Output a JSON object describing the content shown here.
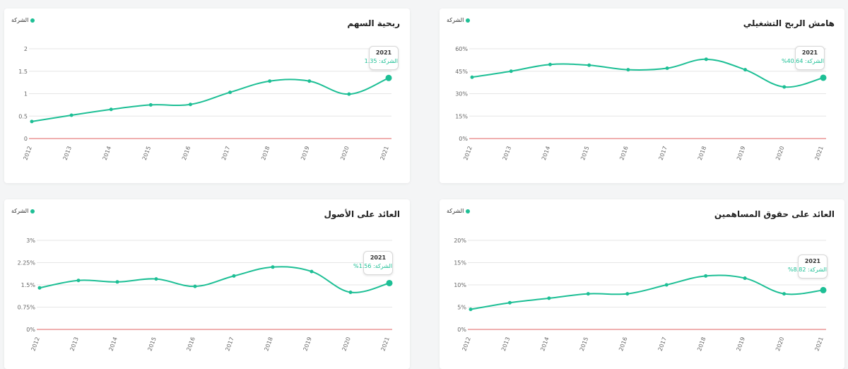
{
  "legend_label": "الشركة",
  "colors": {
    "series": "#1dbf95",
    "baseline": "#e06060",
    "grid": "#e6e6e6"
  },
  "chart_data": [
    {
      "type": "line",
      "title": "هامش الربح التشغيلي",
      "x": [
        "2012",
        "2013",
        "2014",
        "2015",
        "2016",
        "2017",
        "2018",
        "2019",
        "2020",
        "2021"
      ],
      "series": [
        {
          "name": "الشركة",
          "values": [
            41,
            45,
            49.5,
            49,
            46,
            47,
            53,
            46,
            34.5,
            40.64
          ]
        }
      ],
      "yticks": [
        "0%",
        "15%",
        "30%",
        "45%",
        "60%"
      ],
      "ylim": [
        0,
        60
      ],
      "tooltip": {
        "year": "2021",
        "text": "الشركة: 40.64%"
      }
    },
    {
      "type": "line",
      "title": "ربحية السهم",
      "x": [
        "2012",
        "2013",
        "2014",
        "2015",
        "2016",
        "2017",
        "2018",
        "2019",
        "2020",
        "2021"
      ],
      "series": [
        {
          "name": "الشركة",
          "values": [
            0.38,
            0.52,
            0.65,
            0.75,
            0.76,
            1.03,
            1.28,
            1.28,
            0.99,
            1.35
          ]
        }
      ],
      "yticks": [
        "0",
        "0.5",
        "1",
        "1.5",
        "2"
      ],
      "ylim": [
        0,
        2
      ],
      "tooltip": {
        "year": "2021",
        "text": "الشركة: 1.35"
      }
    },
    {
      "type": "line",
      "title": "العائد على حقوق المساهمين",
      "x": [
        "2012",
        "2013",
        "2014",
        "2015",
        "2016",
        "2017",
        "2018",
        "2019",
        "2020",
        "2021"
      ],
      "series": [
        {
          "name": "الشركة",
          "values": [
            4.5,
            6,
            7,
            8,
            8,
            10,
            12,
            11.5,
            8,
            8.82
          ]
        }
      ],
      "yticks": [
        "0%",
        "5%",
        "10%",
        "15%",
        "20%"
      ],
      "ylim": [
        0,
        20
      ],
      "tooltip": {
        "year": "2021",
        "text": "الشركة: 8.82%"
      }
    },
    {
      "type": "line",
      "title": "العائد على الأصول",
      "x": [
        "2012",
        "2013",
        "2014",
        "2015",
        "2016",
        "2017",
        "2018",
        "2019",
        "2020",
        "2021"
      ],
      "series": [
        {
          "name": "الشركة",
          "values": [
            1.4,
            1.65,
            1.6,
            1.7,
            1.45,
            1.8,
            2.1,
            1.95,
            1.25,
            1.56
          ]
        }
      ],
      "yticks": [
        "0%",
        "0.75%",
        "1.5%",
        "2.25%",
        "3%"
      ],
      "ylim": [
        0,
        3
      ],
      "tooltip": {
        "year": "2021",
        "text": "الشركة: 1.56%"
      }
    }
  ]
}
